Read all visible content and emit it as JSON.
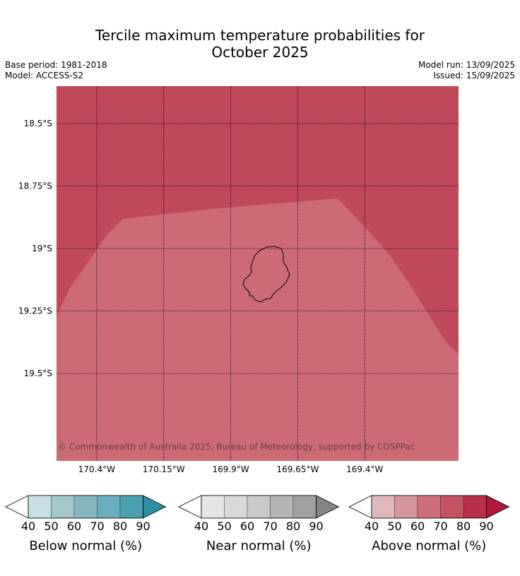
{
  "title_line1": "Tercile maximum temperature probabilities for",
  "title_line2": "October 2025",
  "base_period": "Base period: 1981-2018",
  "model": "Model: ACCESS-S2",
  "model_run": "Model run: 13/09/2025",
  "issued": "Issued: 15/09/2025",
  "copyright": "© Commonwealth of Australia 2025, Bureau of Meteorology, supported by COSPPac",
  "map": {
    "lon_range": [
      -170.55,
      -169.05
    ],
    "lat_range": [
      -19.85,
      -18.35
    ],
    "lat_lines": [
      -18.5,
      -18.75,
      -19.0,
      -19.25,
      -19.5
    ],
    "lon_lines": [
      -170.4,
      -170.15,
      -169.9,
      -169.65,
      -169.4
    ],
    "lat_labels": [
      "18.5°S",
      "18.75°S",
      "19°S",
      "19.25°S",
      "19.5°S"
    ],
    "lon_labels": [
      "170.4°W",
      "170.15°W",
      "169.9°W",
      "169.65°W",
      "169.4°W"
    ],
    "zones": [
      {
        "category": "above",
        "probability_bin": "80-90",
        "color": "#c04858"
      },
      {
        "category": "above",
        "probability_bin": "70-80",
        "color": "#cc6b74"
      }
    ],
    "coastline_color": "#000000",
    "gridline_color": "#000000"
  },
  "legends": [
    {
      "label": "Below normal (%)",
      "ticks": [
        "40",
        "50",
        "60",
        "70",
        "80",
        "90"
      ],
      "colors": [
        "#c7e0e6",
        "#a5c6cb",
        "#88b5c2",
        "#6aaebd",
        "#4ba1b1"
      ],
      "arrow_color": "#2e8fa3"
    },
    {
      "label": "Near normal (%)",
      "ticks": [
        "40",
        "50",
        "60",
        "70",
        "80",
        "90"
      ],
      "colors": [
        "#e6e6e6",
        "#d9d9d9",
        "#c9c9c9",
        "#b5b5b5",
        "#a0a0a0"
      ],
      "arrow_color": "#858585"
    },
    {
      "label": "Above normal (%)",
      "ticks": [
        "40",
        "50",
        "60",
        "70",
        "80",
        "90"
      ],
      "colors": [
        "#e0b8bc",
        "#d4959b",
        "#cc7179",
        "#c4535f",
        "#b73048"
      ],
      "arrow_color": "#b0183a"
    }
  ]
}
